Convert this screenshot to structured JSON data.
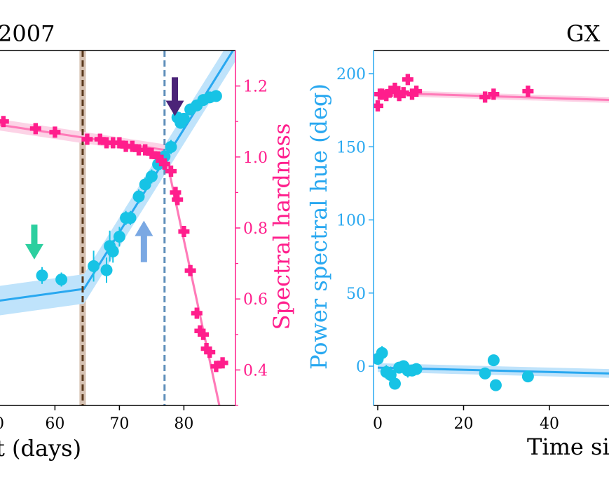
{
  "colors": {
    "hue": "#29a8f0",
    "hue_band": "#bfe3fb",
    "hue_marker": "#17c3e5",
    "hardness": "#ff1e8c",
    "hardness_line": "#ff7ab8",
    "hardness_band": "#fcd3e6",
    "axis": "#000000",
    "brown_line": "#5b3a1e",
    "brown_band": "#d6c2b3",
    "blue_dash": "#5f8fba",
    "arrow_green": "#2ccf9f",
    "arrow_lightblue": "#7aa8e3",
    "arrow_purple": "#4b2378"
  },
  "panels": [
    {
      "title_fragment": "2007",
      "xlabel_fragment": "t (days)",
      "right_ylabel": "Spectral hardness",
      "x_tick_labels": [
        "0",
        "60",
        "70",
        "80"
      ],
      "right_tick_labels": [
        "0.4",
        "0.6",
        "0.8",
        "1.0",
        "1.2"
      ]
    },
    {
      "title_fragment": "GX",
      "xlabel_fragment": "Time sin",
      "left_ylabel": "Power spectral hue (deg)",
      "x_tick_labels": [
        "0",
        "20",
        "40"
      ],
      "left_tick_labels": [
        "0",
        "50",
        "100",
        "150",
        "200"
      ]
    }
  ],
  "chart_data": [
    {
      "type": "scatter",
      "x_unit": "days",
      "xlim": [
        48,
        88
      ],
      "y_hue_lim": [
        -78,
        187
      ],
      "y_hardness_lim": [
        0.3,
        1.3
      ],
      "series": [
        {
          "key": "hue",
          "axis": "left",
          "marker": "circle",
          "x": [
            50,
            58,
            61,
            66,
            68,
            68.5,
            69,
            70,
            71,
            71.7,
            73,
            74,
            75,
            76,
            77,
            78,
            79,
            79.5,
            80,
            81,
            82,
            83,
            84,
            85
          ],
          "y": [
            2,
            19,
            16,
            26,
            23,
            41,
            37,
            48,
            62,
            62,
            78,
            87,
            93,
            102,
            108,
            115,
            137,
            133,
            136,
            143,
            146,
            150,
            152,
            153
          ]
        },
        {
          "key": "hardness",
          "axis": "right",
          "marker": "plus",
          "x": [
            50,
            52,
            57,
            60,
            65,
            67,
            68,
            69,
            70,
            71,
            72,
            73,
            74,
            75,
            76,
            76.5,
            77,
            78,
            78.7,
            79,
            80,
            81,
            82,
            82.5,
            83,
            83.5,
            84,
            85,
            86
          ],
          "y": [
            1.08,
            1.1,
            1.08,
            1.07,
            1.05,
            1.05,
            1.04,
            1.04,
            1.04,
            1.03,
            1.03,
            1.02,
            1.02,
            1.01,
            1.0,
            0.99,
            0.98,
            0.96,
            0.9,
            0.88,
            0.79,
            0.68,
            0.56,
            0.51,
            0.5,
            0.46,
            0.45,
            0.41,
            0.42
          ]
        }
      ],
      "fits": [
        {
          "key": "hue",
          "points": [
            [
              48,
              -2
            ],
            [
              64.5,
              9
            ],
            [
              88,
              190
            ]
          ],
          "band_halfwidth": 11
        },
        {
          "key": "hardness",
          "points": [
            [
              48,
              1.1
            ],
            [
              77,
              1.02
            ],
            [
              85.5,
              0.3
            ]
          ],
          "band_halfwidth": 0.016
        }
      ],
      "vlines": [
        {
          "x": 64.3,
          "style": "brown-dashed-band",
          "band_halfwidth": 0.5
        },
        {
          "x": 77.0,
          "style": "blue-dashed"
        }
      ],
      "arrows": [
        {
          "key": "arrow_green",
          "x": 56.8,
          "direction": "down",
          "y_from": 57,
          "y_to": 31
        },
        {
          "key": "arrow_lightblue",
          "x": 73.8,
          "direction": "up",
          "y_from": 29,
          "y_to": 60
        },
        {
          "key": "arrow_purple",
          "x": 78.6,
          "direction": "down",
          "y_from": 167,
          "y_to": 138
        }
      ]
    },
    {
      "type": "scatter",
      "x_unit": "days",
      "xlim": [
        -1,
        54
      ],
      "ylim": [
        -27,
        215
      ],
      "series": [
        {
          "key": "hardness",
          "marker": "plus",
          "x": [
            0,
            0.5,
            1,
            2,
            3,
            4,
            5,
            6,
            7,
            8,
            9,
            25,
            27,
            35
          ],
          "y": [
            178,
            186,
            186,
            185,
            188,
            190,
            185,
            187,
            196,
            186,
            188,
            184,
            186,
            188
          ]
        },
        {
          "key": "hue",
          "marker": "circle",
          "x": [
            0,
            1,
            2,
            3,
            4,
            5,
            6,
            7,
            8,
            9,
            25,
            27,
            27.5,
            35
          ],
          "y": [
            5,
            9,
            -4,
            -6,
            -12,
            -1,
            0,
            -3,
            -3,
            -2,
            -5,
            4,
            -13,
            -7
          ]
        }
      ],
      "fits": [
        {
          "key": "hardness",
          "points": [
            [
              0,
              187
            ],
            [
              54,
              182
            ]
          ],
          "band_halfwidth": 2
        },
        {
          "key": "hue",
          "points": [
            [
              0,
              -1
            ],
            [
              54,
              -5
            ]
          ],
          "band_halfwidth": 3
        }
      ]
    }
  ]
}
